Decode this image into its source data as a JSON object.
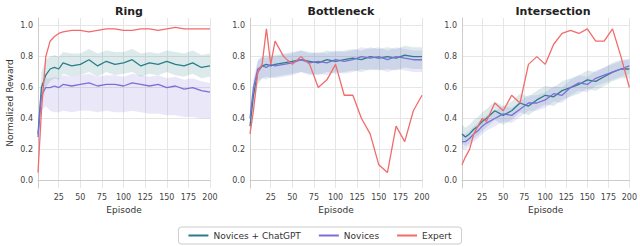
{
  "chart_data": [
    {
      "type": "line",
      "title": "Ring",
      "xlabel": "Episode",
      "ylabel": "Normalized Reward",
      "x": [
        1,
        5,
        10,
        15,
        20,
        25,
        30,
        40,
        50,
        60,
        70,
        80,
        90,
        100,
        110,
        120,
        130,
        140,
        150,
        160,
        170,
        180,
        190,
        200
      ],
      "xlim": [
        1,
        200
      ],
      "xticks": [
        25,
        50,
        75,
        100,
        125,
        150,
        175,
        200
      ],
      "ylim": [
        -0.05,
        1.05
      ],
      "yticks": [
        {
          "value": 0,
          "label": "0.0"
        },
        0.2,
        0.4,
        0.6,
        0.8,
        {
          "value": 1,
          "label": "1.0"
        }
      ],
      "grid": true,
      "series": [
        {
          "name": "Novices + ChatGPT",
          "color": "#2b7d88",
          "values": [
            0.3,
            0.6,
            0.68,
            0.72,
            0.73,
            0.72,
            0.76,
            0.74,
            0.75,
            0.78,
            0.74,
            0.77,
            0.75,
            0.76,
            0.78,
            0.74,
            0.76,
            0.75,
            0.77,
            0.75,
            0.74,
            0.76,
            0.73,
            0.74
          ],
          "lower": [
            0.25,
            0.5,
            0.6,
            0.64,
            0.66,
            0.65,
            0.69,
            0.67,
            0.68,
            0.7,
            0.67,
            0.7,
            0.68,
            0.69,
            0.7,
            0.67,
            0.69,
            0.68,
            0.7,
            0.68,
            0.67,
            0.69,
            0.66,
            0.67
          ],
          "upper": [
            0.35,
            0.7,
            0.78,
            0.8,
            0.81,
            0.8,
            0.83,
            0.82,
            0.82,
            0.85,
            0.82,
            0.84,
            0.83,
            0.83,
            0.85,
            0.82,
            0.83,
            0.82,
            0.84,
            0.83,
            0.82,
            0.84,
            0.81,
            0.82
          ]
        },
        {
          "name": "Novices",
          "color": "#7b6fd6",
          "values": [
            0.28,
            0.55,
            0.6,
            0.6,
            0.61,
            0.6,
            0.62,
            0.61,
            0.62,
            0.63,
            0.61,
            0.62,
            0.62,
            0.61,
            0.63,
            0.62,
            0.61,
            0.62,
            0.6,
            0.61,
            0.59,
            0.6,
            0.58,
            0.57
          ],
          "lower": [
            0.2,
            0.45,
            0.48,
            0.45,
            0.44,
            0.44,
            0.45,
            0.44,
            0.45,
            0.45,
            0.44,
            0.45,
            0.44,
            0.44,
            0.45,
            0.44,
            0.43,
            0.43,
            0.42,
            0.42,
            0.41,
            0.41,
            0.4,
            0.4
          ],
          "upper": [
            0.35,
            0.63,
            0.66,
            0.66,
            0.67,
            0.66,
            0.68,
            0.67,
            0.68,
            0.69,
            0.67,
            0.68,
            0.68,
            0.67,
            0.69,
            0.68,
            0.67,
            0.68,
            0.66,
            0.67,
            0.65,
            0.66,
            0.64,
            0.63
          ]
        },
        {
          "name": "Expert",
          "color": "#f26b6b",
          "values": [
            0.05,
            0.45,
            0.8,
            0.9,
            0.93,
            0.95,
            0.96,
            0.97,
            0.97,
            0.96,
            0.97,
            0.98,
            0.98,
            0.97,
            0.97,
            0.98,
            0.98,
            0.97,
            0.98,
            0.99,
            0.98,
            0.98,
            0.98,
            0.98
          ]
        }
      ]
    },
    {
      "type": "line",
      "title": "Bottleneck",
      "xlabel": "Episode",
      "legend": "bottom",
      "x": [
        1,
        5,
        10,
        15,
        20,
        25,
        30,
        40,
        50,
        60,
        70,
        80,
        90,
        100,
        110,
        120,
        130,
        140,
        150,
        160,
        170,
        180,
        190,
        200
      ],
      "xlim": [
        1,
        200
      ],
      "xticks": [
        25,
        50,
        75,
        100,
        125,
        150,
        175,
        200
      ],
      "ylim": [
        -0.05,
        1.05
      ],
      "yticks": [
        {
          "value": 0,
          "label": "0.0"
        },
        0.2,
        0.4,
        0.6,
        0.8,
        {
          "value": 1,
          "label": "1.0"
        }
      ],
      "grid": true,
      "series": [
        {
          "name": "Novices + ChatGPT",
          "color": "#2b7d88",
          "values": [
            0.35,
            0.55,
            0.7,
            0.74,
            0.75,
            0.74,
            0.75,
            0.76,
            0.77,
            0.78,
            0.77,
            0.76,
            0.78,
            0.77,
            0.78,
            0.79,
            0.78,
            0.8,
            0.79,
            0.8,
            0.79,
            0.81,
            0.8,
            0.8
          ],
          "lower": [
            0.28,
            0.46,
            0.62,
            0.66,
            0.67,
            0.66,
            0.67,
            0.68,
            0.69,
            0.7,
            0.69,
            0.68,
            0.7,
            0.69,
            0.7,
            0.71,
            0.7,
            0.72,
            0.71,
            0.72,
            0.71,
            0.73,
            0.72,
            0.72
          ],
          "upper": [
            0.42,
            0.62,
            0.77,
            0.8,
            0.81,
            0.8,
            0.81,
            0.82,
            0.83,
            0.84,
            0.83,
            0.82,
            0.84,
            0.83,
            0.84,
            0.85,
            0.84,
            0.86,
            0.85,
            0.86,
            0.85,
            0.87,
            0.86,
            0.86
          ]
        },
        {
          "name": "Novices",
          "color": "#7b6fd6",
          "values": [
            0.4,
            0.6,
            0.72,
            0.74,
            0.73,
            0.75,
            0.74,
            0.75,
            0.76,
            0.78,
            0.76,
            0.77,
            0.76,
            0.78,
            0.77,
            0.78,
            0.8,
            0.79,
            0.8,
            0.78,
            0.8,
            0.79,
            0.78,
            0.78
          ],
          "lower": [
            0.33,
            0.52,
            0.64,
            0.66,
            0.65,
            0.67,
            0.66,
            0.67,
            0.68,
            0.7,
            0.68,
            0.69,
            0.68,
            0.7,
            0.69,
            0.7,
            0.72,
            0.71,
            0.72,
            0.7,
            0.72,
            0.71,
            0.7,
            0.7
          ],
          "upper": [
            0.46,
            0.66,
            0.78,
            0.8,
            0.79,
            0.81,
            0.8,
            0.81,
            0.82,
            0.84,
            0.82,
            0.83,
            0.82,
            0.84,
            0.83,
            0.84,
            0.86,
            0.85,
            0.86,
            0.84,
            0.86,
            0.85,
            0.84,
            0.84
          ]
        },
        {
          "name": "Expert",
          "color": "#f26b6b",
          "values": [
            0.3,
            0.45,
            0.7,
            0.75,
            0.98,
            0.75,
            0.9,
            0.8,
            0.75,
            0.8,
            0.75,
            0.6,
            0.65,
            0.75,
            0.55,
            0.55,
            0.4,
            0.3,
            0.1,
            0.05,
            0.35,
            0.25,
            0.45,
            0.55
          ]
        }
      ]
    },
    {
      "type": "line",
      "title": "Intersection",
      "xlabel": "Episode",
      "x": [
        1,
        5,
        10,
        15,
        20,
        25,
        30,
        40,
        50,
        60,
        70,
        80,
        90,
        100,
        110,
        120,
        130,
        140,
        150,
        160,
        170,
        180,
        190,
        200
      ],
      "xlim": [
        1,
        200
      ],
      "xticks": [
        25,
        50,
        75,
        100,
        125,
        150,
        175,
        200
      ],
      "ylim": [
        -0.05,
        1.05
      ],
      "yticks": [
        {
          "value": 0,
          "label": "0.0"
        },
        0.2,
        0.4,
        0.6,
        0.8,
        {
          "value": 1,
          "label": "1.0"
        }
      ],
      "grid": true,
      "series": [
        {
          "name": "Novices + ChatGPT",
          "color": "#2b7d88",
          "values": [
            0.3,
            0.28,
            0.3,
            0.33,
            0.35,
            0.38,
            0.4,
            0.45,
            0.42,
            0.45,
            0.5,
            0.48,
            0.52,
            0.55,
            0.54,
            0.58,
            0.6,
            0.62,
            0.65,
            0.64,
            0.67,
            0.7,
            0.72,
            0.72
          ],
          "lower": [
            0.24,
            0.22,
            0.24,
            0.27,
            0.29,
            0.32,
            0.34,
            0.39,
            0.36,
            0.39,
            0.44,
            0.42,
            0.46,
            0.49,
            0.48,
            0.52,
            0.54,
            0.56,
            0.59,
            0.58,
            0.61,
            0.64,
            0.66,
            0.66
          ],
          "upper": [
            0.36,
            0.34,
            0.36,
            0.39,
            0.41,
            0.44,
            0.46,
            0.51,
            0.48,
            0.51,
            0.56,
            0.54,
            0.58,
            0.61,
            0.6,
            0.64,
            0.66,
            0.68,
            0.71,
            0.7,
            0.73,
            0.76,
            0.78,
            0.78
          ]
        },
        {
          "name": "Novices",
          "color": "#7b6fd6",
          "values": [
            0.25,
            0.25,
            0.27,
            0.3,
            0.32,
            0.35,
            0.37,
            0.4,
            0.43,
            0.42,
            0.46,
            0.5,
            0.5,
            0.52,
            0.56,
            0.55,
            0.6,
            0.63,
            0.62,
            0.66,
            0.68,
            0.7,
            0.72,
            0.74
          ],
          "lower": [
            0.2,
            0.2,
            0.22,
            0.25,
            0.27,
            0.3,
            0.32,
            0.35,
            0.38,
            0.37,
            0.41,
            0.45,
            0.45,
            0.47,
            0.51,
            0.5,
            0.55,
            0.58,
            0.57,
            0.61,
            0.63,
            0.65,
            0.67,
            0.69
          ],
          "upper": [
            0.3,
            0.3,
            0.32,
            0.35,
            0.37,
            0.4,
            0.42,
            0.45,
            0.48,
            0.47,
            0.51,
            0.55,
            0.55,
            0.57,
            0.61,
            0.6,
            0.65,
            0.68,
            0.67,
            0.71,
            0.73,
            0.75,
            0.77,
            0.79
          ]
        },
        {
          "name": "Expert",
          "color": "#f26b6b",
          "values": [
            0.1,
            0.15,
            0.2,
            0.3,
            0.35,
            0.4,
            0.38,
            0.5,
            0.45,
            0.55,
            0.5,
            0.75,
            0.8,
            0.75,
            0.88,
            0.95,
            0.97,
            0.95,
            0.98,
            0.9,
            0.9,
            0.98,
            0.8,
            0.6
          ]
        }
      ]
    }
  ]
}
